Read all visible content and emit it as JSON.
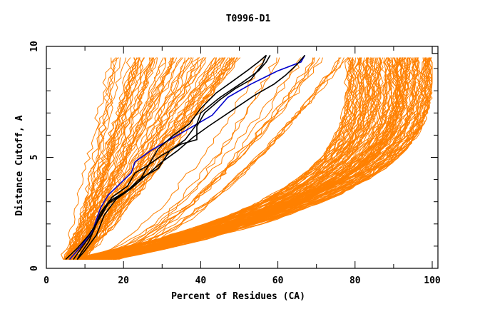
{
  "chart_data": {
    "type": "line",
    "title": "T0996-D1",
    "xlabel": "Percent of Residues (CA)",
    "ylabel": "Distance Cutoff, A",
    "xlim": [
      0,
      100
    ],
    "ylim": [
      0,
      10
    ],
    "x_ticks": [
      0,
      20,
      40,
      60,
      80,
      100
    ],
    "y_ticks": [
      0,
      5,
      10
    ],
    "grid": false,
    "legend": "none",
    "colors": {
      "models": "#ff8000",
      "highlight_black": "#000000",
      "highlight_blue": "#0000cc"
    },
    "series": [
      {
        "name": "highlight-blue",
        "color": "#0000cc",
        "points": [
          [
            6,
            0.4
          ],
          [
            9,
            1.0
          ],
          [
            12,
            1.7
          ],
          [
            14,
            2.7
          ],
          [
            16,
            3.3
          ],
          [
            19,
            3.8
          ],
          [
            22,
            4.3
          ],
          [
            23,
            4.8
          ],
          [
            27,
            5.3
          ],
          [
            33,
            5.9
          ],
          [
            38,
            6.4
          ],
          [
            43,
            6.9
          ],
          [
            47,
            7.7
          ],
          [
            53,
            8.3
          ],
          [
            60,
            8.9
          ],
          [
            66,
            9.3
          ],
          [
            67,
            9.6
          ]
        ]
      },
      {
        "name": "highlight-black-1",
        "color": "#000000",
        "points": [
          [
            5,
            0.4
          ],
          [
            8,
            0.9
          ],
          [
            11,
            1.5
          ],
          [
            14,
            2.3
          ],
          [
            16,
            2.9
          ],
          [
            20,
            3.4
          ],
          [
            24,
            3.9
          ],
          [
            26,
            4.5
          ],
          [
            29,
            5.4
          ],
          [
            33,
            6.0
          ],
          [
            37,
            6.5
          ],
          [
            40,
            7.2
          ],
          [
            44,
            7.9
          ],
          [
            48,
            8.4
          ],
          [
            52,
            8.9
          ],
          [
            55,
            9.3
          ],
          [
            57,
            9.6
          ]
        ]
      },
      {
        "name": "highlight-black-2",
        "color": "#000000",
        "points": [
          [
            8,
            0.4
          ],
          [
            9,
            0.7
          ],
          [
            11,
            1.2
          ],
          [
            13,
            2.0
          ],
          [
            15,
            2.7
          ],
          [
            17,
            3.1
          ],
          [
            21,
            3.5
          ],
          [
            24,
            4.0
          ],
          [
            29,
            4.5
          ],
          [
            32,
            5.3
          ],
          [
            36,
            5.8
          ],
          [
            39,
            6.5
          ],
          [
            40,
            7.0
          ],
          [
            45,
            7.7
          ],
          [
            51,
            8.4
          ],
          [
            55,
            8.9
          ],
          [
            57,
            9.3
          ],
          [
            58,
            9.6
          ]
        ]
      },
      {
        "name": "highlight-black-3",
        "color": "#000000",
        "points": [
          [
            7,
            0.4
          ],
          [
            9,
            0.9
          ],
          [
            12,
            1.6
          ],
          [
            14,
            2.5
          ],
          [
            17,
            3.2
          ],
          [
            21,
            3.7
          ],
          [
            23,
            4.3
          ],
          [
            26,
            4.6
          ],
          [
            30,
            5.1
          ],
          [
            35,
            5.6
          ],
          [
            39,
            5.8
          ],
          [
            39,
            6.4
          ],
          [
            41,
            7.0
          ],
          [
            45,
            7.6
          ],
          [
            49,
            8.1
          ],
          [
            53,
            8.5
          ],
          [
            56,
            9.2
          ],
          [
            57,
            9.6
          ]
        ]
      },
      {
        "name": "highlight-black-4",
        "color": "#000000",
        "points": [
          [
            8,
            0.4
          ],
          [
            10,
            0.8
          ],
          [
            13,
            1.5
          ],
          [
            15,
            2.4
          ],
          [
            18,
            3.1
          ],
          [
            22,
            3.6
          ],
          [
            26,
            4.2
          ],
          [
            30,
            4.8
          ],
          [
            34,
            5.3
          ],
          [
            38,
            5.9
          ],
          [
            42,
            6.4
          ],
          [
            48,
            7.1
          ],
          [
            54,
            7.8
          ],
          [
            59,
            8.3
          ],
          [
            62,
            8.7
          ],
          [
            65,
            9.2
          ],
          [
            67,
            9.6
          ]
        ]
      }
    ],
    "model_groups": [
      {
        "name": "good-models",
        "count": 70,
        "x_start": [
          4,
          10
        ],
        "x_end": [
          16,
          50
        ],
        "shape": "steep"
      },
      {
        "name": "mid-models",
        "count": 15,
        "x_start": [
          6,
          14
        ],
        "x_end": [
          55,
          80
        ],
        "shape": "linear"
      },
      {
        "name": "poor-models",
        "count": 120,
        "x_start": [
          6,
          18
        ],
        "x_end": [
          78,
          100
        ],
        "shape": "convex"
      }
    ]
  }
}
